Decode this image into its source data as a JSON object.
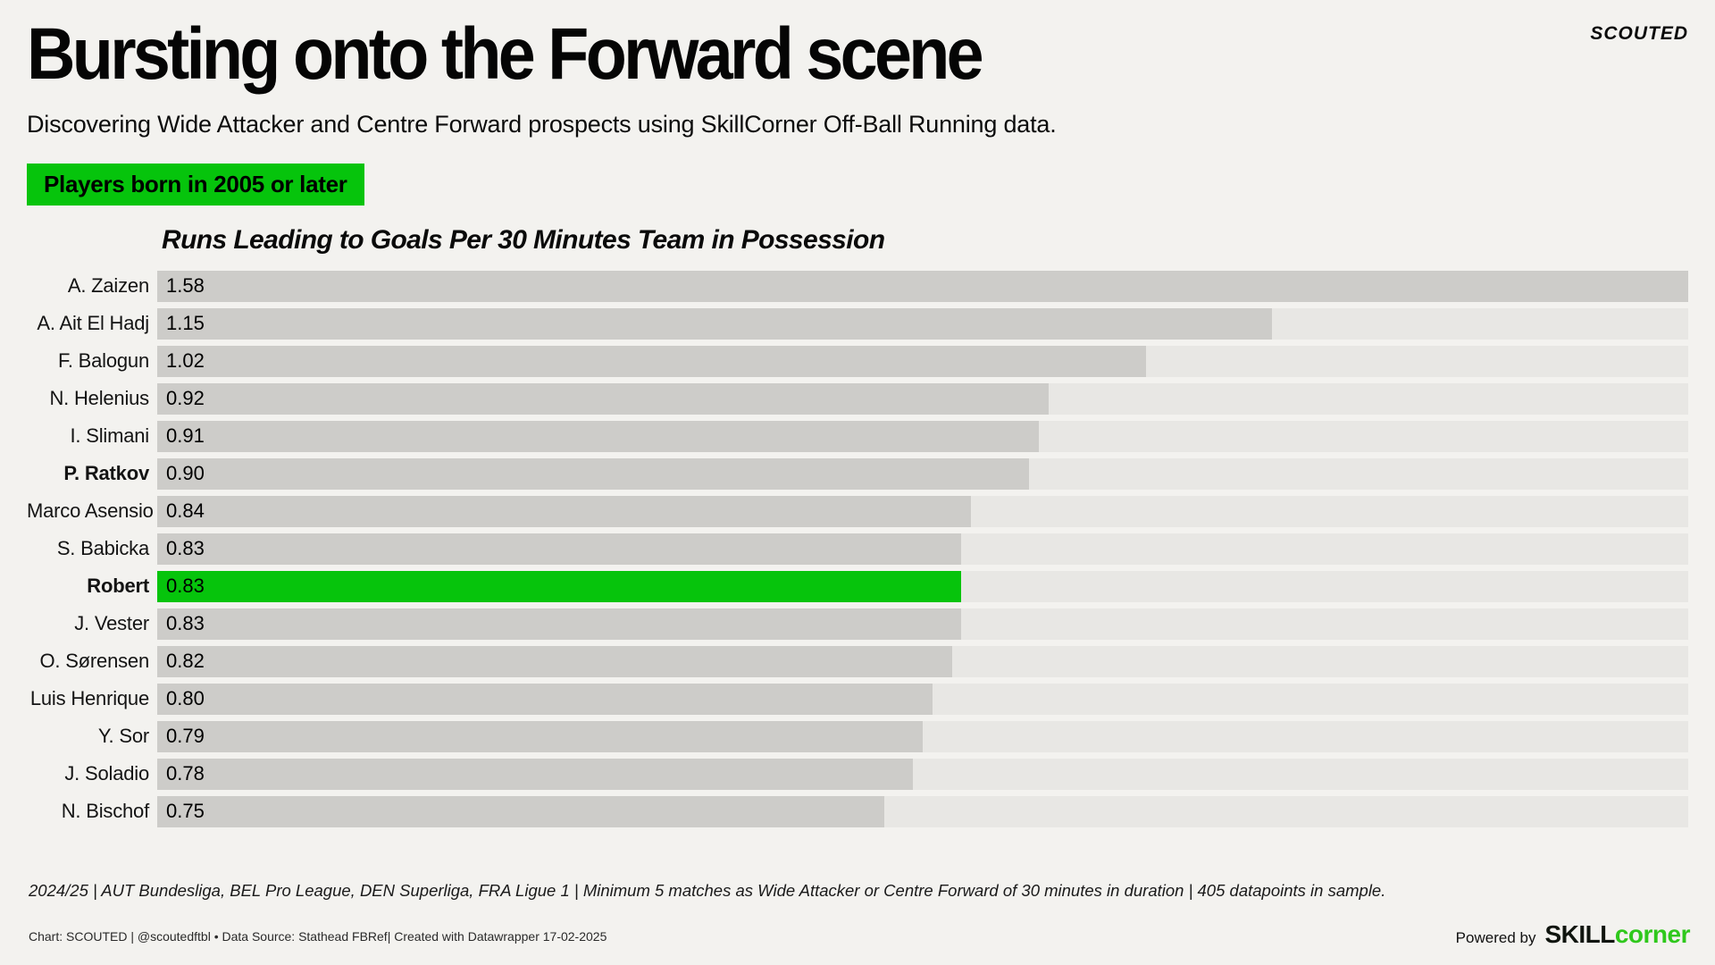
{
  "header": {
    "logo": "SCOUTED",
    "title": "Bursting onto the Forward scene",
    "subtitle": "Discovering Wide Attacker and Centre Forward prospects using SkillCorner Off-Ball Running data.",
    "badge": "Players born in 2005 or later"
  },
  "chart_data": {
    "type": "bar",
    "orientation": "horizontal",
    "title": "Runs Leading to Goals Per 30 Minutes Team in Possession",
    "categories": [
      "A. Zaizen",
      "A. Ait El Hadj",
      "F. Balogun",
      "N. Helenius",
      "I. Slimani",
      "P. Ratkov",
      "Marco Asensio",
      "S. Babicka",
      "Robert",
      "J. Vester",
      "O. Sørensen",
      "Luis Henrique",
      "Y. Sor",
      "J. Soladio",
      "N. Bischof"
    ],
    "values": [
      1.58,
      1.15,
      1.02,
      0.92,
      0.91,
      0.9,
      0.84,
      0.83,
      0.83,
      0.83,
      0.82,
      0.8,
      0.79,
      0.78,
      0.75
    ],
    "value_labels": [
      "1.58",
      "1.15",
      "1.02",
      "0.92",
      "0.91",
      "0.90",
      "0.84",
      "0.83",
      "0.83",
      "0.83",
      "0.82",
      "0.80",
      "0.79",
      "0.78",
      "0.75"
    ],
    "xlim": [
      0,
      1.58
    ],
    "highlight_index": 8,
    "bold_label_indices": [
      5,
      8
    ],
    "value_label_position": "inside-start",
    "grid": "off",
    "legend": "none"
  },
  "footer": {
    "note": "2024/25 | AUT Bundesliga, BEL Pro League, DEN Superliga, FRA Ligue 1 | Minimum 5 matches as Wide Attacker or Centre Forward of 30 minutes in duration | 405 datapoints in sample.",
    "credit": "Chart: SCOUTED | @scoutedftbl • Data Source: Stathead FBRef| Created with Datawrapper 17-02-2025",
    "powered_by": "Powered by",
    "brand_black": "SKILL",
    "brand_green": "corner"
  },
  "colors": {
    "highlight_green": "#06c40c",
    "bar_gray": "#cdccc9",
    "track_gray": "#e8e7e4",
    "background": "#f3f2ef",
    "skillcorner_green": "#2fc81c"
  }
}
